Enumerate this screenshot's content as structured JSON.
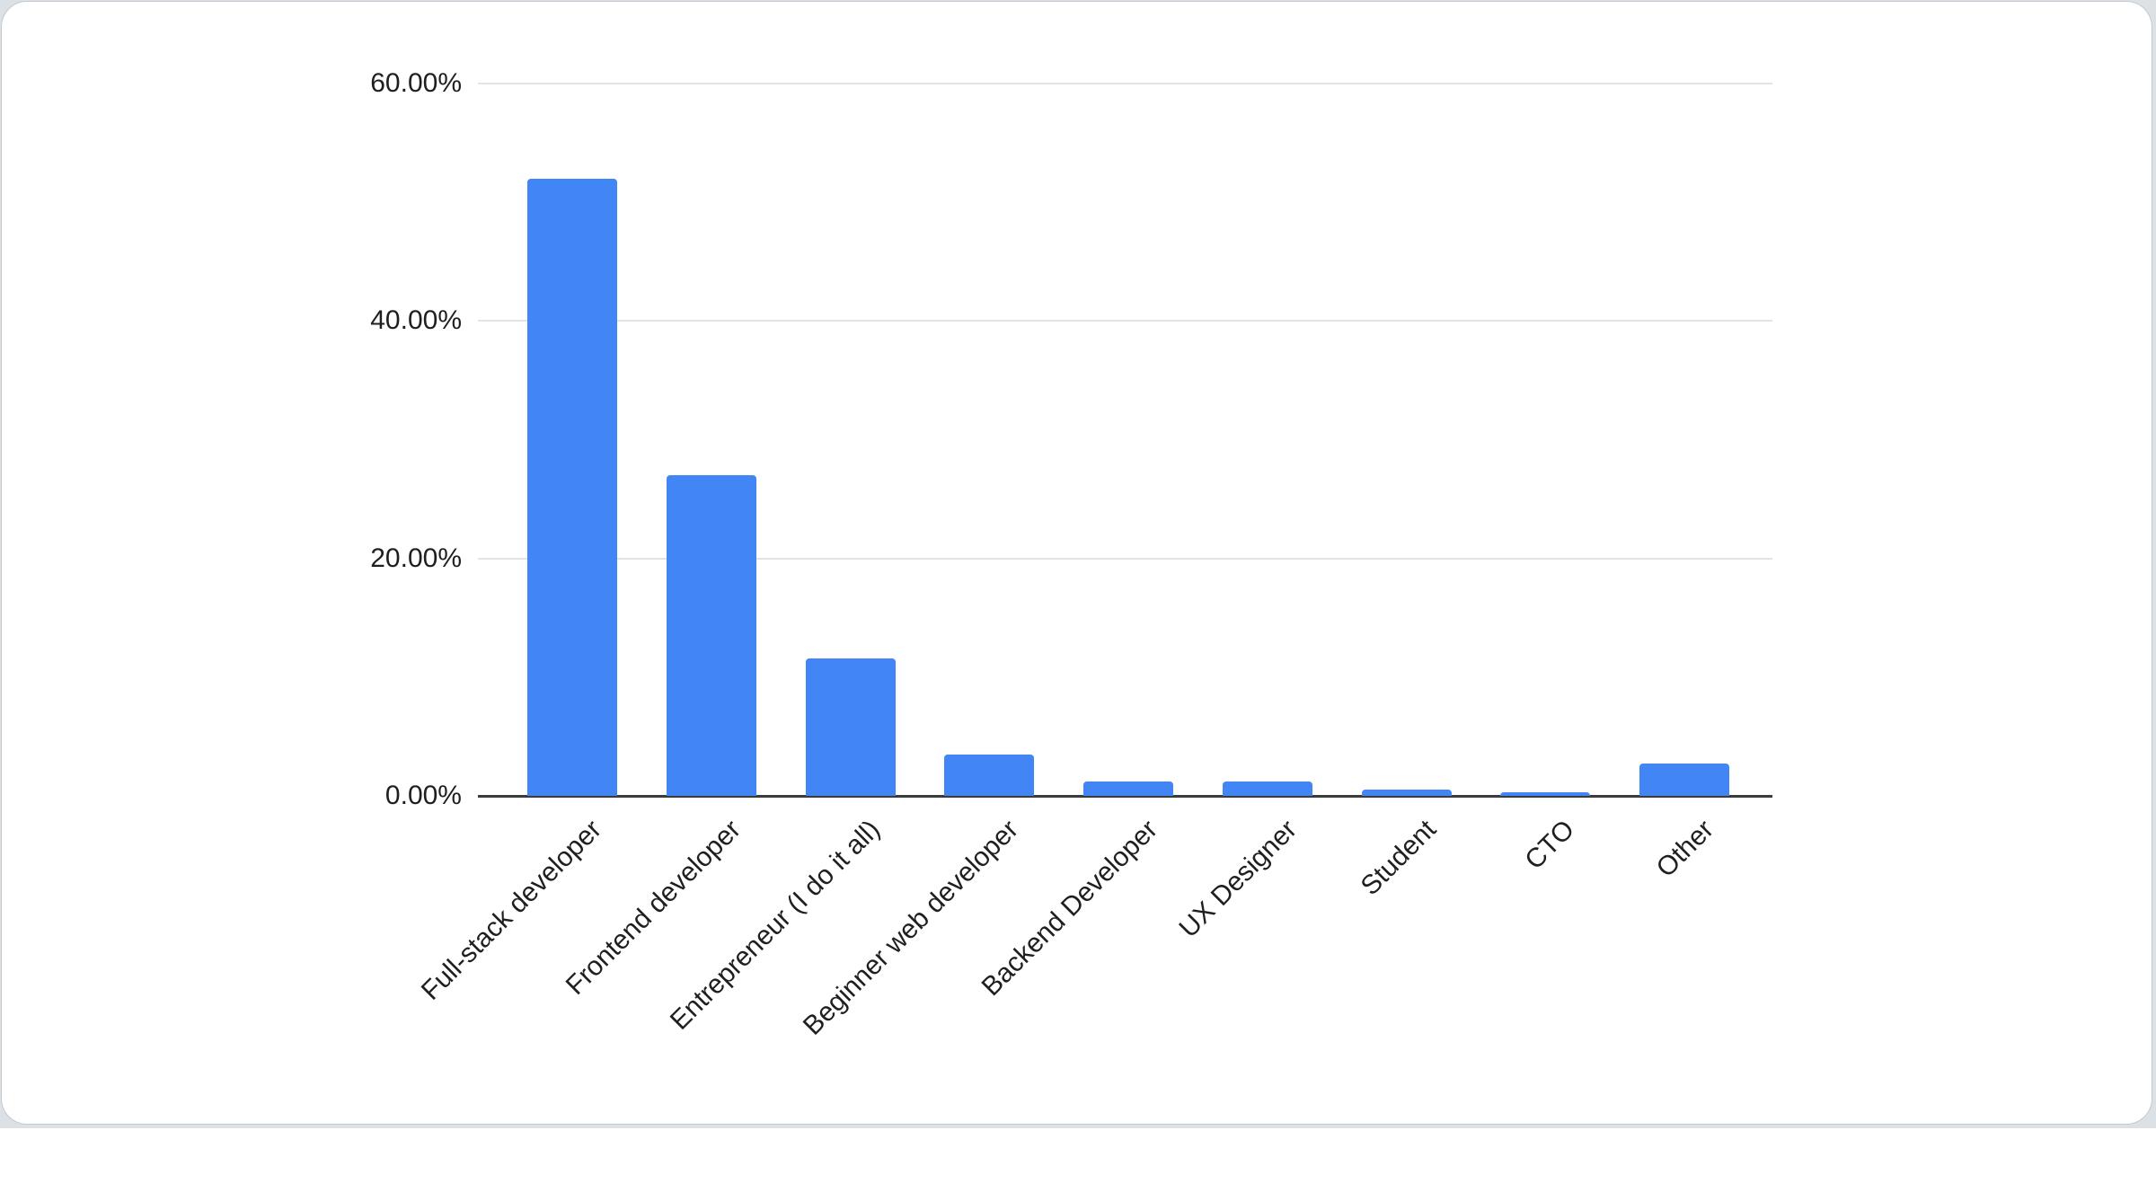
{
  "page": {
    "background_color": "#dce1e6",
    "card_background_color": "#ffffff"
  },
  "chart_data": {
    "type": "bar",
    "title": "",
    "xlabel": "",
    "ylabel": "",
    "categories": [
      "Full-stack developer",
      "Frontend developer",
      "Entrepreneur (I do it all)",
      "Beginner web developer",
      "Backend Developer",
      "UX Designer",
      "Student",
      "CTO",
      "Other"
    ],
    "values": [
      52.0,
      27.0,
      11.6,
      3.5,
      1.2,
      1.2,
      0.5,
      0.3,
      2.7
    ],
    "value_unit": "percent",
    "y_ticks": [
      {
        "value": 0,
        "label": "0.00%"
      },
      {
        "value": 20,
        "label": "20.00%"
      },
      {
        "value": 40,
        "label": "40.00%"
      },
      {
        "value": 60,
        "label": "60.00%"
      }
    ],
    "ylim": [
      0,
      60
    ],
    "grid": true,
    "legend_position": "none",
    "bar_color": "#4285F4",
    "gridline_color": "#e3e3e3",
    "axis_line_color": "#3b3b3b",
    "text_color": "#1f1f1f"
  }
}
